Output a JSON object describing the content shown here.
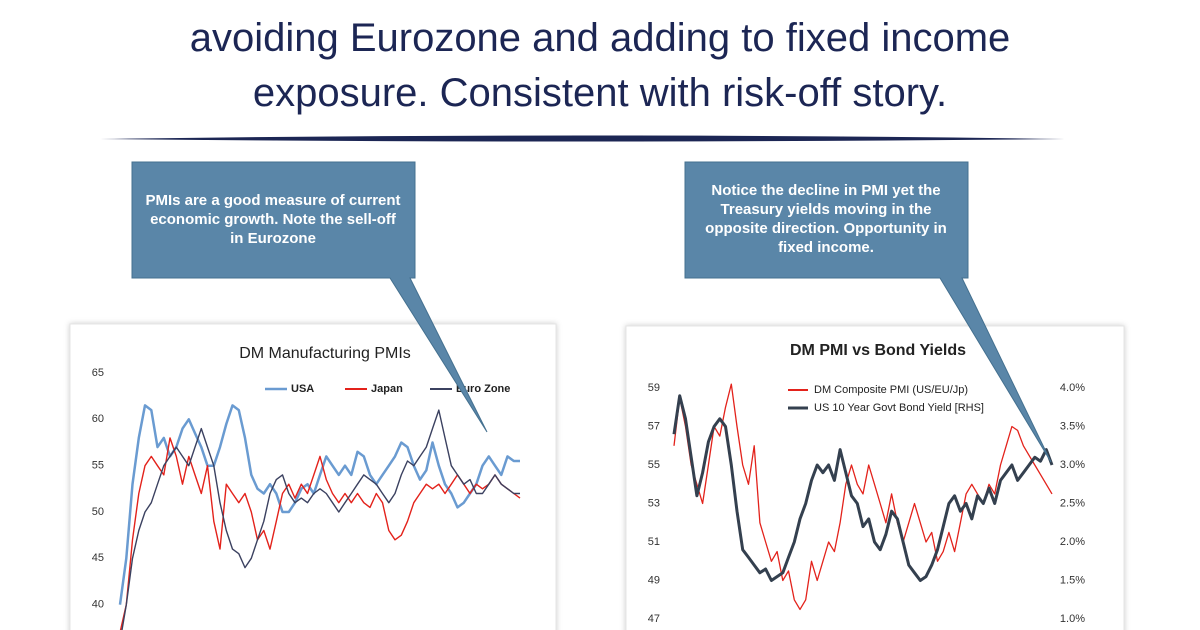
{
  "header": {
    "lines": [
      "avoiding Eurozone and adding to fixed income",
      "exposure. Consistent with risk-off story."
    ]
  },
  "callouts": [
    "PMIs are a good measure of current economic growth. Note the sell-off in Eurozone",
    "Notice the decline in PMI yet the Treasury yields moving in the opposite direction. Opportunity in fixed income."
  ],
  "chart_data": [
    {
      "type": "line",
      "title": "DM Manufacturing PMIs",
      "ylim": [
        35,
        65
      ],
      "yticks": [
        40,
        45,
        50,
        55,
        60,
        65
      ],
      "series": [
        {
          "name": "USA",
          "color": "#6a9bd1",
          "values": [
            40,
            45,
            53,
            58,
            61.5,
            61,
            57,
            58,
            56,
            57,
            59,
            60,
            58.5,
            57,
            55,
            55,
            57,
            59.5,
            61.5,
            61,
            58,
            54,
            52.5,
            52,
            53,
            52,
            50,
            50,
            51,
            52.5,
            53,
            52,
            54,
            56,
            55,
            54,
            55,
            54,
            56.5,
            56,
            54,
            53,
            54,
            55,
            56,
            57.5,
            57,
            55,
            53.5,
            54.5,
            57.5,
            55,
            53,
            52,
            50.5,
            51,
            52,
            53,
            55,
            56,
            55,
            54,
            56,
            55.5,
            55.5
          ]
        },
        {
          "name": "Japan",
          "color": "#e3221b",
          "values": [
            37,
            40,
            47,
            52,
            55,
            56,
            55,
            54,
            58,
            56,
            53,
            56,
            54,
            52,
            55,
            49,
            46,
            53,
            52,
            51,
            52,
            50,
            47,
            48,
            46,
            49,
            52,
            53,
            51.5,
            53,
            52,
            54,
            56,
            53.5,
            52,
            51,
            52,
            51,
            52,
            51,
            50.5,
            52,
            51,
            48,
            47,
            47.5,
            49,
            51,
            52,
            53,
            52.5,
            53,
            52,
            53,
            54,
            53,
            52,
            53,
            52.5,
            53,
            54,
            53,
            52.5,
            52,
            51.5
          ]
        },
        {
          "name": "Euro Zone",
          "color": "#3b4160",
          "values": [
            36,
            40,
            45,
            48,
            50,
            51,
            53,
            55,
            56,
            57,
            56,
            55,
            57,
            59,
            57,
            55,
            51,
            48,
            46,
            45.5,
            44,
            45,
            47,
            49,
            52,
            53.5,
            54,
            52,
            51,
            51.5,
            51,
            52,
            52.5,
            52,
            51,
            50,
            51,
            52,
            53,
            54,
            53.5,
            53,
            52,
            51,
            52,
            54,
            55.5,
            55,
            56,
            57,
            59,
            61,
            58,
            55,
            54,
            53,
            53.5,
            52,
            52,
            53,
            54,
            53,
            52.5,
            52,
            52
          ]
        }
      ]
    },
    {
      "type": "line",
      "title": "DM PMI vs Bond Yields",
      "ylim": [
        47,
        59
      ],
      "yticks": [
        47,
        49,
        51,
        53,
        55,
        57,
        59
      ],
      "y2lim": [
        1,
        4
      ],
      "y2ticks": [
        {
          "value": 1,
          "label": "1.0%"
        },
        {
          "value": 1.5,
          "label": "1.5%"
        },
        {
          "value": 2,
          "label": "2.0%"
        },
        {
          "value": 2.5,
          "label": "2.5%"
        },
        {
          "value": 3,
          "label": "3.0%"
        },
        {
          "value": 3.5,
          "label": "3.5%"
        },
        {
          "value": 4,
          "label": "4.0%"
        }
      ],
      "series": [
        {
          "name": "DM Composite PMI (US/EU/Jp)",
          "color": "#e3221b",
          "values": [
            56,
            58.5,
            57,
            55,
            54,
            53,
            55,
            57,
            56.5,
            58,
            59.2,
            57,
            55,
            54,
            56,
            52,
            51,
            50,
            50.5,
            49,
            49.5,
            48,
            47.5,
            48,
            50,
            49,
            50,
            51,
            50.5,
            52,
            54,
            55,
            54,
            53.5,
            55,
            54,
            53,
            52,
            53.5,
            52,
            51,
            52,
            53,
            52,
            51,
            51.5,
            50,
            50.5,
            51.5,
            50.5,
            52,
            53.5,
            54,
            53.5,
            53,
            54,
            53.5,
            55,
            56,
            57,
            56.8,
            56,
            55.5,
            55,
            54.5,
            54,
            53.5
          ]
        },
        {
          "name": "US 10 Year Govt Bond Yield [RHS]",
          "color": "#34404f",
          "axis": "y2",
          "values": [
            3.4,
            3.9,
            3.6,
            3.1,
            2.6,
            2.9,
            3.3,
            3.5,
            3.6,
            3.5,
            3.0,
            2.4,
            1.9,
            1.8,
            1.7,
            1.6,
            1.65,
            1.5,
            1.55,
            1.6,
            1.8,
            2.0,
            2.3,
            2.5,
            2.8,
            3.0,
            2.9,
            3.0,
            2.8,
            3.2,
            2.9,
            2.6,
            2.5,
            2.2,
            2.3,
            2.0,
            1.9,
            2.1,
            2.4,
            2.3,
            2.0,
            1.7,
            1.6,
            1.5,
            1.55,
            1.7,
            1.9,
            2.2,
            2.5,
            2.6,
            2.4,
            2.5,
            2.3,
            2.6,
            2.5,
            2.7,
            2.5,
            2.8,
            2.9,
            3.0,
            2.8,
            2.9,
            3.0,
            3.1,
            3.05,
            3.2,
            3.0
          ]
        }
      ]
    }
  ]
}
